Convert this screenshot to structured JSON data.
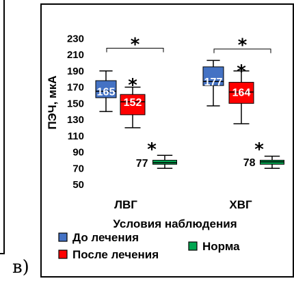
{
  "panel_label": "в)",
  "chart_data": {
    "type": "boxplot",
    "ylabel": "ПЭЧ, мкА",
    "xlabel": "Условия наблюдения",
    "ylim": [
      50,
      230
    ],
    "yticks": [
      50,
      70,
      90,
      110,
      130,
      150,
      170,
      190,
      210,
      230
    ],
    "categories": [
      "ЛВГ",
      "ХВГ"
    ],
    "series": [
      {
        "name": "До лечения",
        "color": "#4472C4",
        "boxes": [
          {
            "category": "ЛВГ",
            "median": 165,
            "label": "165",
            "q1": 157,
            "q3": 178,
            "whisker_low": 140,
            "whisker_high": 190
          },
          {
            "category": "ХВГ",
            "median": 177,
            "label": "177",
            "q1": 172,
            "q3": 195,
            "whisker_low": 147,
            "whisker_high": 203
          }
        ]
      },
      {
        "name": "После лечения",
        "color": "#FF0000",
        "boxes": [
          {
            "category": "ЛВГ",
            "median": 152,
            "label": "152",
            "q1": 136,
            "q3": 161,
            "whisker_low": 120,
            "whisker_high": 170
          },
          {
            "category": "ХВГ",
            "median": 164,
            "label": "164",
            "q1": 150,
            "q3": 176,
            "whisker_low": 125,
            "whisker_high": 190
          }
        ]
      },
      {
        "name": "Норма",
        "color": "#00A651",
        "boxes": [
          {
            "category": "ЛВГ",
            "median": 77,
            "label": "77",
            "q1": 75,
            "q3": 80,
            "whisker_low": 70,
            "whisker_high": 86
          },
          {
            "category": "ХВГ",
            "median": 78,
            "label": "78",
            "q1": 75,
            "q3": 80,
            "whisker_low": 70,
            "whisker_high": 85
          }
        ]
      }
    ],
    "annotations": {
      "significance_mark": "*",
      "brackets": [
        {
          "category": "ЛВГ",
          "y": 218
        },
        {
          "category": "ХВГ",
          "y": 217
        }
      ],
      "stars": [
        {
          "category": "ЛВГ",
          "series": "После лечения",
          "y": 177
        },
        {
          "category": "ЛВГ",
          "series": "Норма",
          "y": 98
        },
        {
          "category": "ХВГ",
          "series": "После лечения",
          "y": 194
        },
        {
          "category": "ХВГ",
          "series": "Норма",
          "y": 98
        }
      ]
    },
    "legend": {
      "placement": "bottom"
    }
  }
}
